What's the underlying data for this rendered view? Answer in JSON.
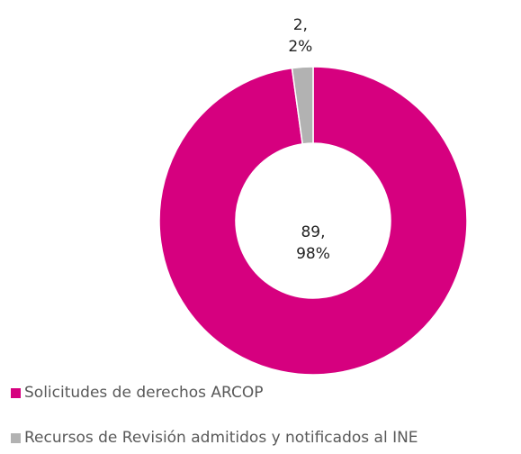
{
  "chart_data": {
    "type": "donut",
    "categories": [
      "Solicitudes de derechos ARCOP",
      "Recursos de Revisión admitidos y notificados al INE"
    ],
    "values": [
      89,
      2
    ],
    "value_labels": [
      "89,\n98%",
      "2,\n2%"
    ],
    "colors": [
      "#d6007f",
      "#b2b2b2"
    ],
    "legend": "bottom-left"
  }
}
